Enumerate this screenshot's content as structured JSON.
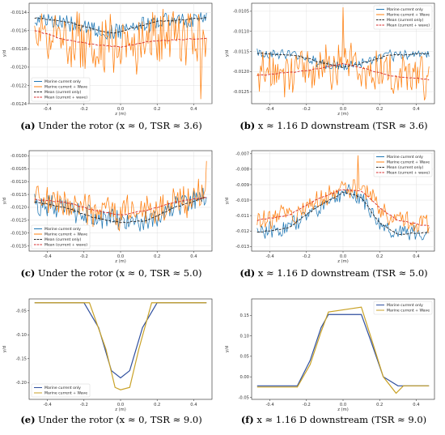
{
  "colors": {
    "blue": "#1f77b4",
    "orange": "#ff7f0e",
    "black_dashed": "#222222",
    "red_dashed": "#d62728",
    "gold": "#c9a227",
    "navy": "#2f4f9e"
  },
  "captions": {
    "a": {
      "tag": "(a)",
      "text": "Under the rotor (x ≈ 0, TSR ≈ 3.6)"
    },
    "b": {
      "tag": "(b)",
      "text": "x ≈ 1.16 D downstream (TSR ≈ 3.6)"
    },
    "c": {
      "tag": "(c)",
      "text": "Under the rotor (x ≈ 0, TSR ≈ 5.0)"
    },
    "d": {
      "tag": "(d)",
      "text": "x ≈ 1.16 D downstream (TSR ≈ 5.0)"
    },
    "e": {
      "tag": "(e)",
      "text": "Under the rotor (x ≈ 0, TSR ≈ 9.0)"
    },
    "f": {
      "tag": "(f)",
      "text": "x ≈ 1.16 D downstream (TSR ≈ 9.0)"
    }
  },
  "chart_data": [
    {
      "id": "a",
      "type": "line",
      "xlabel": "z (m)",
      "ylabel": "y/d",
      "xlim": [
        -0.5,
        0.5
      ],
      "ylim": [
        -0.0124,
        -0.0113
      ],
      "xticks": [
        -0.4,
        -0.2,
        0.0,
        0.2,
        0.4
      ],
      "xtick_labels": [
        "-0.4",
        "-0.2",
        "0.0",
        "0.2",
        "0.4"
      ],
      "yticks": [
        -0.0124,
        -0.0122,
        -0.012,
        -0.0118,
        -0.0116,
        -0.0114
      ],
      "ytick_labels": [
        "-0.0124",
        "-0.0122",
        "-0.0120",
        "-0.0118",
        "-0.0116",
        "-0.0114"
      ],
      "legend": "bottom-left",
      "grid": true,
      "series": [
        {
          "name": "Marine current only",
          "style": "solid",
          "color": "blue",
          "noisy": true,
          "amp": 8e-05,
          "x": [
            -0.47,
            -0.3,
            -0.15,
            -0.05,
            0.05,
            0.2,
            0.35,
            0.47
          ],
          "y": [
            -0.01146,
            -0.0115,
            -0.01158,
            -0.01163,
            -0.01158,
            -0.0115,
            -0.01148,
            -0.01146
          ]
        },
        {
          "name": "Marine current + Wave",
          "style": "solid",
          "color": "orange",
          "noisy": true,
          "amp": 0.00028,
          "spike_at": 0.44,
          "spike_val": -0.01235,
          "x": [
            -0.47,
            -0.3,
            -0.15,
            0.0,
            0.15,
            0.3,
            0.47
          ],
          "y": [
            -0.0116,
            -0.0117,
            -0.01175,
            -0.01178,
            -0.01172,
            -0.0117,
            -0.01168
          ]
        },
        {
          "name": "Mean (current only)",
          "style": "dashed",
          "color": "black_dashed",
          "noisy": false,
          "x": [
            -0.47,
            -0.3,
            -0.15,
            -0.05,
            0.05,
            0.2,
            0.35,
            0.47
          ],
          "y": [
            -0.01146,
            -0.0115,
            -0.01158,
            -0.01163,
            -0.01158,
            -0.0115,
            -0.01148,
            -0.01146
          ]
        },
        {
          "name": "Mean (current + wave)",
          "style": "dashed",
          "color": "red_dashed",
          "noisy": false,
          "x": [
            -0.47,
            -0.3,
            -0.15,
            0.0,
            0.15,
            0.3,
            0.47
          ],
          "y": [
            -0.0116,
            -0.0117,
            -0.01175,
            -0.01178,
            -0.01172,
            -0.0117,
            -0.01168
          ]
        }
      ]
    },
    {
      "id": "b",
      "type": "line",
      "xlabel": "z (m)",
      "ylabel": "y/d",
      "xlim": [
        -0.5,
        0.5
      ],
      "ylim": [
        -0.0128,
        -0.0103
      ],
      "xticks": [
        -0.4,
        -0.2,
        0.0,
        0.2,
        0.4
      ],
      "xtick_labels": [
        "-0.4",
        "-0.2",
        "0.0",
        "0.2",
        "0.4"
      ],
      "yticks": [
        -0.0125,
        -0.012,
        -0.0115,
        -0.011,
        -0.0105
      ],
      "ytick_labels": [
        "-0.0125",
        "-0.0120",
        "-0.0115",
        "-0.0110",
        "-0.0105"
      ],
      "legend": "top-right",
      "grid": true,
      "series": [
        {
          "name": "Marine current only",
          "style": "solid",
          "color": "blue",
          "noisy": true,
          "amp": 0.00012,
          "x": [
            -0.47,
            -0.25,
            -0.1,
            0.0,
            0.1,
            0.25,
            0.47
          ],
          "y": [
            -0.01155,
            -0.0116,
            -0.0118,
            -0.0119,
            -0.0118,
            -0.0116,
            -0.01155
          ]
        },
        {
          "name": "Marine current + Wave",
          "style": "solid",
          "color": "orange",
          "noisy": true,
          "amp": 0.0005,
          "spike_at": 0.0,
          "spike_val": -0.0104,
          "x": [
            -0.47,
            -0.25,
            -0.1,
            0.0,
            0.1,
            0.25,
            0.47
          ],
          "y": [
            -0.0121,
            -0.012,
            -0.0119,
            -0.0118,
            -0.0119,
            -0.0121,
            -0.0122
          ]
        },
        {
          "name": "Mean (current only)",
          "style": "dashed",
          "color": "black_dashed",
          "noisy": false,
          "x": [
            -0.47,
            -0.25,
            -0.1,
            0.0,
            0.1,
            0.25,
            0.47
          ],
          "y": [
            -0.01155,
            -0.0116,
            -0.0118,
            -0.0119,
            -0.0118,
            -0.0116,
            -0.01155
          ]
        },
        {
          "name": "Mean (current + wave)",
          "style": "dashed",
          "color": "red_dashed",
          "noisy": false,
          "x": [
            -0.47,
            -0.25,
            -0.1,
            0.0,
            0.1,
            0.25,
            0.47
          ],
          "y": [
            -0.0121,
            -0.012,
            -0.0119,
            -0.0118,
            -0.0119,
            -0.0121,
            -0.0122
          ]
        }
      ]
    },
    {
      "id": "c",
      "type": "line",
      "xlabel": "z (m)",
      "ylabel": "y/d",
      "xlim": [
        -0.5,
        0.5
      ],
      "ylim": [
        -0.0137,
        -0.0098
      ],
      "xticks": [
        -0.4,
        -0.2,
        0.0,
        0.2,
        0.4
      ],
      "xtick_labels": [
        "-0.4",
        "-0.2",
        "0.0",
        "0.2",
        "0.4"
      ],
      "yticks": [
        -0.0135,
        -0.013,
        -0.0125,
        -0.012,
        -0.0115,
        -0.011,
        -0.0105,
        -0.01
      ],
      "ytick_labels": [
        "-0.0135",
        "-0.0130",
        "-0.0125",
        "-0.0120",
        "-0.0115",
        "-0.0110",
        "-0.0105",
        "-0.0100"
      ],
      "legend": "bottom-left",
      "grid": true,
      "series": [
        {
          "name": "Marine current only",
          "style": "solid",
          "color": "blue",
          "noisy": true,
          "amp": 0.0004,
          "x": [
            -0.47,
            -0.3,
            -0.15,
            0.0,
            0.15,
            0.3,
            0.47
          ],
          "y": [
            -0.0118,
            -0.012,
            -0.0124,
            -0.0126,
            -0.0125,
            -0.012,
            -0.0116
          ]
        },
        {
          "name": "Marine current + Wave",
          "style": "solid",
          "color": "orange",
          "noisy": true,
          "amp": 0.0006,
          "spike_at": 0.47,
          "spike_val": -0.0102,
          "x": [
            -0.47,
            -0.3,
            -0.15,
            0.0,
            0.15,
            0.3,
            0.47
          ],
          "y": [
            -0.0117,
            -0.0118,
            -0.0121,
            -0.0123,
            -0.0121,
            -0.0118,
            -0.0116
          ]
        },
        {
          "name": "Mean (current only)",
          "style": "dashed",
          "color": "black_dashed",
          "noisy": false,
          "x": [
            -0.47,
            -0.3,
            -0.15,
            0.0,
            0.15,
            0.3,
            0.47
          ],
          "y": [
            -0.0118,
            -0.012,
            -0.0124,
            -0.0126,
            -0.0125,
            -0.012,
            -0.0116
          ]
        },
        {
          "name": "Mean (current + wave)",
          "style": "dashed",
          "color": "red_dashed",
          "noisy": false,
          "x": [
            -0.47,
            -0.3,
            -0.15,
            0.0,
            0.15,
            0.3,
            0.47
          ],
          "y": [
            -0.0117,
            -0.0118,
            -0.0121,
            -0.0123,
            -0.0121,
            -0.0118,
            -0.0116
          ]
        }
      ]
    },
    {
      "id": "d",
      "type": "line",
      "xlabel": "z (m)",
      "ylabel": "y/d",
      "xlim": [
        -0.5,
        0.5
      ],
      "ylim": [
        -0.0133,
        -0.0068
      ],
      "xticks": [
        -0.4,
        -0.2,
        0.0,
        0.2,
        0.4
      ],
      "xtick_labels": [
        "-0.4",
        "-0.2",
        "0.0",
        "0.2",
        "0.4"
      ],
      "yticks": [
        -0.013,
        -0.012,
        -0.011,
        -0.01,
        -0.009,
        -0.008,
        -0.007
      ],
      "ytick_labels": [
        "-0.013",
        "-0.012",
        "-0.011",
        "-0.010",
        "-0.009",
        "-0.008",
        "-0.007"
      ],
      "legend": "top-right",
      "grid": true,
      "series": [
        {
          "name": "Marine current only",
          "style": "solid",
          "color": "blue",
          "noisy": true,
          "amp": 0.0005,
          "x": [
            -0.47,
            -0.3,
            -0.15,
            0.0,
            0.1,
            0.2,
            0.3,
            0.47
          ],
          "y": [
            -0.0121,
            -0.0118,
            -0.0105,
            -0.0095,
            -0.0098,
            -0.0115,
            -0.0122,
            -0.0121
          ]
        },
        {
          "name": "Marine current + Wave",
          "style": "solid",
          "color": "orange",
          "noisy": true,
          "amp": 0.0007,
          "spike_at": 0.08,
          "spike_val": -0.0071,
          "x": [
            -0.47,
            -0.3,
            -0.15,
            0.0,
            0.1,
            0.2,
            0.3,
            0.47
          ],
          "y": [
            -0.0113,
            -0.011,
            -0.01,
            -0.0093,
            -0.0094,
            -0.0105,
            -0.0113,
            -0.0117
          ]
        },
        {
          "name": "Mean (current only)",
          "style": "dashed",
          "color": "black_dashed",
          "noisy": false,
          "x": [
            -0.47,
            -0.3,
            -0.15,
            0.0,
            0.1,
            0.2,
            0.3,
            0.47
          ],
          "y": [
            -0.0121,
            -0.0118,
            -0.0105,
            -0.0095,
            -0.0098,
            -0.0115,
            -0.0122,
            -0.0121
          ]
        },
        {
          "name": "Mean (current + wave)",
          "style": "dashed",
          "color": "red_dashed",
          "noisy": false,
          "x": [
            -0.47,
            -0.3,
            -0.15,
            0.0,
            0.1,
            0.2,
            0.3,
            0.47
          ],
          "y": [
            -0.0113,
            -0.011,
            -0.01,
            -0.0093,
            -0.0094,
            -0.0105,
            -0.0113,
            -0.0117
          ]
        }
      ]
    },
    {
      "id": "e",
      "type": "line",
      "xlabel": "z (m)",
      "ylabel": "y/d",
      "xlim": [
        -0.5,
        0.5
      ],
      "ylim": [
        -0.235,
        -0.025
      ],
      "xticks": [
        -0.4,
        -0.2,
        0.0,
        0.2,
        0.4
      ],
      "xtick_labels": [
        "-0.4",
        "-0.2",
        "0.0",
        "0.2",
        "0.4"
      ],
      "yticks": [
        -0.2,
        -0.15,
        -0.1,
        -0.05
      ],
      "ytick_labels": [
        "-0.20",
        "-0.15",
        "-0.10",
        "-0.05"
      ],
      "legend": "bottom-left",
      "grid": false,
      "series": [
        {
          "name": "Marine current only",
          "style": "solid",
          "color": "navy",
          "noisy": false,
          "x": [
            -0.47,
            -0.2,
            -0.12,
            -0.05,
            0.0,
            0.05,
            0.12,
            0.2,
            0.47
          ],
          "y": [
            -0.033,
            -0.033,
            -0.085,
            -0.175,
            -0.19,
            -0.175,
            -0.085,
            -0.033,
            -0.033
          ]
        },
        {
          "name": "Marine current + Wave",
          "style": "solid",
          "color": "gold",
          "noisy": false,
          "x": [
            -0.47,
            -0.17,
            -0.08,
            -0.03,
            0.0,
            0.05,
            0.1,
            0.17,
            0.47
          ],
          "y": [
            -0.033,
            -0.033,
            -0.13,
            -0.21,
            -0.215,
            -0.21,
            -0.13,
            -0.033,
            -0.033
          ]
        }
      ]
    },
    {
      "id": "f",
      "type": "line",
      "xlabel": "z (m)",
      "ylabel": "y/d",
      "xlim": [
        -0.5,
        0.5
      ],
      "ylim": [
        -0.055,
        0.19
      ],
      "xticks": [
        -0.4,
        -0.2,
        0.0,
        0.2,
        0.4
      ],
      "xtick_labels": [
        "-0.4",
        "-0.2",
        "0.0",
        "0.2",
        "0.4"
      ],
      "yticks": [
        -0.05,
        0.0,
        0.05,
        0.1,
        0.15
      ],
      "ytick_labels": [
        "-0.05",
        "0.00",
        "0.05",
        "0.10",
        "0.15"
      ],
      "legend": "top-right",
      "grid": false,
      "series": [
        {
          "name": "Marine current only",
          "style": "solid",
          "color": "navy",
          "noisy": false,
          "x": [
            -0.47,
            -0.25,
            -0.18,
            -0.12,
            -0.08,
            0.1,
            0.15,
            0.22,
            0.3,
            0.47
          ],
          "y": [
            -0.022,
            -0.022,
            0.04,
            0.12,
            0.152,
            0.152,
            0.09,
            0.0,
            -0.022,
            -0.022
          ]
        },
        {
          "name": "Marine current + Wave",
          "style": "solid",
          "color": "gold",
          "noisy": false,
          "x": [
            -0.47,
            -0.25,
            -0.18,
            -0.12,
            -0.08,
            0.1,
            0.15,
            0.22,
            0.29,
            0.33,
            0.47
          ],
          "y": [
            -0.025,
            -0.025,
            0.03,
            0.11,
            0.158,
            0.17,
            0.1,
            0.0,
            -0.04,
            -0.022,
            -0.022
          ]
        }
      ]
    }
  ]
}
